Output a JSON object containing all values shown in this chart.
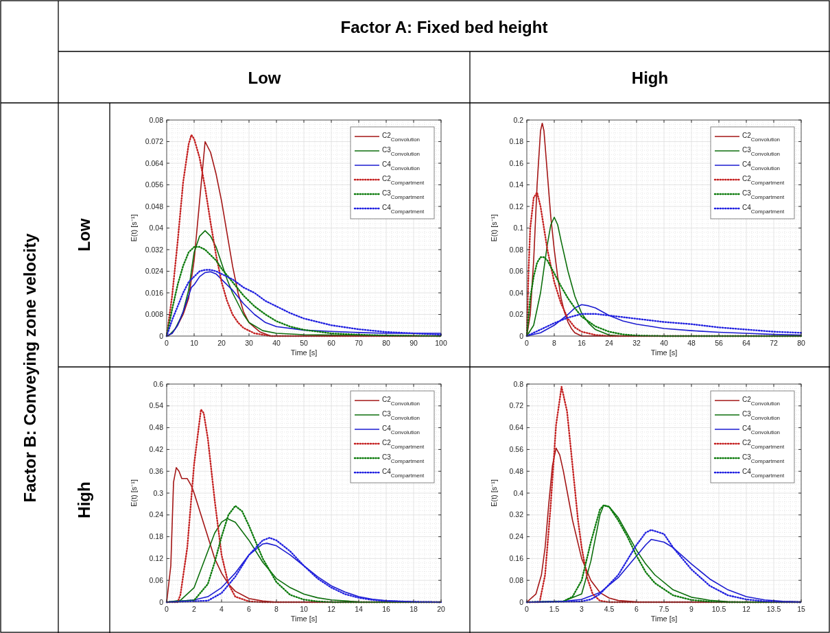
{
  "chart_data": [
    {
      "type": "line",
      "title": "Low",
      "subtitle": "Low",
      "annotations": [
        "Factor A: Fixed bed height",
        "Factor B: Conveying zone velocity"
      ],
      "xlabel": "Time [s]",
      "ylabel": "E(t) [s⁻¹]",
      "xlim": [
        0,
        100
      ],
      "xticks": [
        0,
        10,
        20,
        30,
        40,
        50,
        60,
        70,
        80,
        90,
        100
      ],
      "ylim": [
        0,
        0.08
      ],
      "yticks": [
        0,
        0.008,
        0.016,
        0.024,
        0.032,
        0.04,
        0.048,
        0.056,
        0.064,
        0.072,
        0.08
      ],
      "grid": true,
      "legend": "top right",
      "series": [
        {
          "name": "C2$_{Convolution}$",
          "color": "#a31515",
          "line_style": "solid",
          "x": [
            0,
            2,
            4,
            6,
            8,
            10,
            12,
            14,
            16,
            18,
            20,
            22,
            24,
            26,
            28,
            30,
            34,
            38,
            50,
            100
          ],
          "values": [
            0,
            0.001,
            0.004,
            0.008,
            0.014,
            0.028,
            0.05,
            0.072,
            0.068,
            0.06,
            0.05,
            0.038,
            0.026,
            0.016,
            0.009,
            0.005,
            0.0015,
            0,
            0,
            0
          ]
        },
        {
          "name": "C3$_{Convolution}$",
          "color": "#0b6e0b",
          "line_style": "solid",
          "x": [
            1,
            3,
            5,
            6,
            8,
            10,
            12,
            14,
            16,
            18,
            20,
            22,
            24,
            26,
            28,
            30,
            35,
            40,
            50,
            100
          ],
          "values": [
            0.0004,
            0.0025,
            0.0065,
            0.009,
            0.017,
            0.031,
            0.037,
            0.039,
            0.037,
            0.033,
            0.027,
            0.021,
            0.016,
            0.012,
            0.008,
            0.005,
            0.002,
            0.001,
            0.0005,
            0
          ]
        },
        {
          "name": "C4$_{Convolution}$",
          "color": "#1a1ad0",
          "line_style": "solid",
          "x": [
            0,
            2,
            4,
            6,
            8,
            9,
            10,
            12,
            14,
            16,
            18,
            20,
            24,
            28,
            32,
            36,
            40,
            50,
            60,
            70,
            80,
            90,
            100
          ],
          "values": [
            0,
            0.001,
            0.004,
            0.009,
            0.015,
            0.018,
            0.019,
            0.022,
            0.0235,
            0.0238,
            0.023,
            0.021,
            0.017,
            0.012,
            0.008,
            0.005,
            0.0035,
            0.0022,
            0.0017,
            0.0013,
            0.001,
            0.001,
            0.001
          ]
        },
        {
          "name": "C2$_{Compartment}$",
          "color": "#c42020",
          "line_style": "dotted",
          "x": [
            0,
            2,
            4,
            6,
            8,
            9,
            10,
            12,
            14,
            16,
            18,
            20,
            22,
            24,
            26,
            28,
            32,
            38,
            100
          ],
          "values": [
            0,
            0.015,
            0.035,
            0.057,
            0.071,
            0.0745,
            0.073,
            0.066,
            0.055,
            0.042,
            0.03,
            0.02,
            0.013,
            0.008,
            0.005,
            0.003,
            0.001,
            0,
            0
          ]
        },
        {
          "name": "C3$_{Compartment}$",
          "color": "#0b7a0b",
          "line_style": "dotted",
          "x": [
            0,
            2,
            4,
            6,
            8,
            10,
            12,
            14,
            16,
            18,
            20,
            24,
            28,
            32,
            36,
            40,
            45,
            50,
            60,
            70,
            80,
            100
          ],
          "values": [
            0,
            0.01,
            0.019,
            0.026,
            0.031,
            0.033,
            0.033,
            0.032,
            0.03,
            0.028,
            0.025,
            0.02,
            0.015,
            0.011,
            0.008,
            0.0055,
            0.0035,
            0.0023,
            0.001,
            0.0005,
            0.0002,
            0
          ]
        },
        {
          "name": "C4$_{Compartment}$",
          "color": "#2020e0",
          "line_style": "dotted",
          "x": [
            0,
            2,
            4,
            6,
            8,
            10,
            12,
            14,
            16,
            18,
            20,
            24,
            28,
            32,
            36,
            40,
            45,
            50,
            60,
            70,
            80,
            90,
            100
          ],
          "values": [
            0,
            0.006,
            0.011,
            0.016,
            0.02,
            0.022,
            0.024,
            0.0245,
            0.0245,
            0.024,
            0.023,
            0.021,
            0.018,
            0.016,
            0.013,
            0.011,
            0.0085,
            0.0065,
            0.004,
            0.0025,
            0.0015,
            0.001,
            0.0005
          ]
        }
      ]
    },
    {
      "type": "line",
      "title": "High",
      "xlabel": "Time [s]",
      "ylabel": "E(t) [s⁻¹]",
      "xlim": [
        0,
        80
      ],
      "xticks": [
        0,
        8,
        16,
        24,
        32,
        40,
        48,
        56,
        64,
        72,
        80
      ],
      "ylim": [
        0,
        0.2
      ],
      "yticks": [
        0,
        0.02,
        0.04,
        0.06,
        0.08,
        0.1,
        0.12,
        0.14,
        0.16,
        0.18,
        0.2
      ],
      "grid": true,
      "legend": "top right",
      "series": [
        {
          "name": "C2$_{Convolution}$",
          "color": "#a31515",
          "line_style": "solid",
          "x": [
            0,
            1,
            2,
            3,
            4,
            4.5,
            5,
            6,
            7,
            8,
            9,
            10,
            11,
            12,
            13,
            14,
            16,
            80
          ],
          "values": [
            0,
            0.02,
            0.07,
            0.14,
            0.19,
            0.197,
            0.19,
            0.15,
            0.11,
            0.08,
            0.055,
            0.035,
            0.022,
            0.013,
            0.007,
            0.003,
            0,
            0
          ]
        },
        {
          "name": "C3$_{Convolution}$",
          "color": "#0b6e0b",
          "line_style": "solid",
          "x": [
            0,
            2,
            4,
            6,
            7,
            8,
            9,
            10,
            12,
            14,
            16,
            18,
            20,
            24,
            28,
            80
          ],
          "values": [
            0,
            0.01,
            0.04,
            0.085,
            0.103,
            0.11,
            0.103,
            0.088,
            0.06,
            0.037,
            0.021,
            0.012,
            0.006,
            0.001,
            0,
            0
          ]
        },
        {
          "name": "C4$_{Convolution}$",
          "color": "#1a1ad0",
          "line_style": "solid",
          "x": [
            0,
            4,
            8,
            12,
            14,
            16,
            18,
            20,
            24,
            28,
            32,
            36,
            40,
            48,
            56,
            64,
            72,
            80
          ],
          "values": [
            0,
            0.003,
            0.01,
            0.02,
            0.026,
            0.029,
            0.028,
            0.026,
            0.019,
            0.014,
            0.011,
            0.009,
            0.007,
            0.005,
            0.0035,
            0.0025,
            0.0015,
            0.001
          ]
        },
        {
          "name": "C2$_{Compartment}$",
          "color": "#c42020",
          "line_style": "dotted",
          "x": [
            0,
            0.5,
            1,
            2,
            3,
            4,
            6,
            8,
            10,
            12,
            14,
            16,
            20,
            24,
            80
          ],
          "values": [
            0,
            0.06,
            0.1,
            0.128,
            0.133,
            0.12,
            0.08,
            0.05,
            0.03,
            0.016,
            0.008,
            0.004,
            0.001,
            0,
            0
          ]
        },
        {
          "name": "C3$_{Compartment}$",
          "color": "#0b7a0b",
          "line_style": "dotted",
          "x": [
            0,
            1,
            2,
            3,
            4,
            5,
            6,
            8,
            10,
            12,
            14,
            16,
            20,
            24,
            28,
            32,
            40,
            80
          ],
          "values": [
            0,
            0.035,
            0.055,
            0.068,
            0.073,
            0.073,
            0.07,
            0.058,
            0.046,
            0.035,
            0.026,
            0.018,
            0.009,
            0.004,
            0.0015,
            0.0005,
            0,
            0
          ]
        },
        {
          "name": "C4$_{Compartment}$",
          "color": "#2020e0",
          "line_style": "dotted",
          "x": [
            0,
            2,
            4,
            8,
            12,
            16,
            20,
            24,
            32,
            40,
            48,
            56,
            64,
            72,
            80
          ],
          "values": [
            0,
            0.003,
            0.006,
            0.012,
            0.017,
            0.0205,
            0.0205,
            0.019,
            0.016,
            0.013,
            0.011,
            0.008,
            0.006,
            0.004,
            0.003
          ]
        }
      ]
    },
    {
      "type": "line",
      "subtitle": "High",
      "xlabel": "Time [s]",
      "ylabel": "E(t) [s⁻¹]",
      "xlim": [
        0,
        20
      ],
      "xticks": [
        0,
        2,
        4,
        6,
        8,
        10,
        12,
        14,
        16,
        18,
        20
      ],
      "ylim": [
        0,
        0.6
      ],
      "yticks": [
        0,
        0.06,
        0.12,
        0.18,
        0.24,
        0.3,
        0.36,
        0.42,
        0.48,
        0.54,
        0.6
      ],
      "grid": true,
      "legend": "top right",
      "series": [
        {
          "name": "C2$_{Convolution}$",
          "color": "#a31515",
          "line_style": "solid",
          "x": [
            0,
            0.3,
            0.5,
            0.7,
            0.9,
            1.1,
            1.5,
            1.8,
            2,
            2.5,
            3,
            3.5,
            4,
            4.5,
            5,
            6,
            7,
            8,
            20
          ],
          "values": [
            0,
            0.1,
            0.33,
            0.37,
            0.36,
            0.34,
            0.34,
            0.32,
            0.3,
            0.24,
            0.18,
            0.12,
            0.08,
            0.05,
            0.03,
            0.01,
            0.003,
            0,
            0
          ]
        },
        {
          "name": "C3$_{Convolution}$",
          "color": "#0b6e0b",
          "line_style": "solid",
          "x": [
            0,
            1,
            2,
            3,
            3.5,
            4,
            4.4,
            5,
            6,
            7,
            8,
            9,
            10,
            11,
            12,
            14,
            16,
            20
          ],
          "values": [
            0,
            0.005,
            0.04,
            0.14,
            0.19,
            0.22,
            0.23,
            0.22,
            0.17,
            0.11,
            0.065,
            0.04,
            0.022,
            0.012,
            0.006,
            0.001,
            0,
            0
          ]
        },
        {
          "name": "C4$_{Convolution}$",
          "color": "#1a1ad0",
          "line_style": "solid",
          "x": [
            0,
            2,
            3,
            4,
            5,
            6,
            7,
            7.3,
            8,
            9,
            10,
            11,
            12,
            13,
            14,
            15,
            16,
            18,
            20
          ],
          "values": [
            0,
            0.006,
            0.015,
            0.04,
            0.08,
            0.13,
            0.16,
            0.162,
            0.155,
            0.13,
            0.1,
            0.07,
            0.045,
            0.028,
            0.015,
            0.008,
            0.004,
            0.001,
            0
          ]
        },
        {
          "name": "C2$_{Compartment}$",
          "color": "#c42020",
          "line_style": "dotted",
          "x": [
            0,
            0.8,
            1,
            1.5,
            2,
            2.5,
            2.7,
            3,
            3.5,
            4,
            4.5,
            5,
            6,
            7,
            20
          ],
          "values": [
            0,
            0,
            0.02,
            0.15,
            0.38,
            0.53,
            0.52,
            0.45,
            0.28,
            0.13,
            0.05,
            0.015,
            0.002,
            0,
            0
          ]
        },
        {
          "name": "C3$_{Compartment}$",
          "color": "#0b7a0b",
          "line_style": "dotted",
          "x": [
            0,
            2,
            3,
            3.5,
            4,
            4.5,
            5,
            5.5,
            6,
            7,
            8,
            9,
            10,
            11,
            12,
            20
          ],
          "values": [
            0,
            0.005,
            0.05,
            0.11,
            0.18,
            0.24,
            0.265,
            0.25,
            0.21,
            0.12,
            0.055,
            0.02,
            0.007,
            0.002,
            0,
            0
          ]
        },
        {
          "name": "C4$_{Compartment}$",
          "color": "#2020e0",
          "line_style": "dotted",
          "x": [
            0,
            3,
            4,
            5,
            6,
            7,
            7.5,
            8,
            9,
            10,
            11,
            12,
            13,
            14,
            15,
            16,
            18,
            20
          ],
          "values": [
            0,
            0.004,
            0.025,
            0.07,
            0.13,
            0.17,
            0.177,
            0.17,
            0.14,
            0.1,
            0.065,
            0.04,
            0.022,
            0.012,
            0.006,
            0.003,
            0.001,
            0
          ]
        }
      ]
    },
    {
      "type": "line",
      "xlabel": "Time [s]",
      "ylabel": "E(t) [s⁻¹]",
      "xlim": [
        0,
        15
      ],
      "xticks": [
        0,
        1.5,
        3,
        4.5,
        6,
        7.5,
        9,
        10.5,
        12,
        13.5,
        15
      ],
      "ylim": [
        0,
        0.8
      ],
      "yticks": [
        0,
        0.08,
        0.16,
        0.24,
        0.32,
        0.4,
        0.48,
        0.56,
        0.64,
        0.72,
        0.8
      ],
      "grid": true,
      "legend": "top right",
      "series": [
        {
          "name": "C2$_{Convolution}$",
          "color": "#a31515",
          "line_style": "solid",
          "x": [
            0,
            0.5,
            0.8,
            1,
            1.2,
            1.4,
            1.6,
            1.8,
            2,
            2.5,
            3,
            3.5,
            4,
            4.5,
            5,
            6,
            7,
            15
          ],
          "values": [
            0,
            0.03,
            0.1,
            0.2,
            0.36,
            0.5,
            0.565,
            0.54,
            0.48,
            0.3,
            0.16,
            0.08,
            0.035,
            0.015,
            0.006,
            0.001,
            0,
            0
          ]
        },
        {
          "name": "C3$_{Convolution}$",
          "color": "#0b6e0b",
          "line_style": "solid",
          "x": [
            0,
            2,
            3,
            3.5,
            4,
            4.2,
            4.5,
            5,
            5.5,
            6,
            6.5,
            7,
            8,
            9,
            10,
            11,
            12,
            15
          ],
          "values": [
            0,
            0.003,
            0.03,
            0.15,
            0.32,
            0.355,
            0.35,
            0.31,
            0.25,
            0.19,
            0.14,
            0.1,
            0.045,
            0.018,
            0.007,
            0.002,
            0,
            0
          ]
        },
        {
          "name": "C4$_{Convolution}$",
          "color": "#1a1ad0",
          "line_style": "solid",
          "x": [
            0,
            2,
            3,
            4,
            5,
            6,
            6.5,
            6.8,
            7.5,
            8,
            9,
            10,
            11,
            12,
            13,
            14,
            15
          ],
          "values": [
            0,
            0.003,
            0.01,
            0.035,
            0.09,
            0.17,
            0.21,
            0.23,
            0.22,
            0.2,
            0.14,
            0.085,
            0.045,
            0.02,
            0.008,
            0.003,
            0.001
          ]
        },
        {
          "name": "C2$_{Compartment}$",
          "color": "#c42020",
          "line_style": "dotted",
          "x": [
            0,
            0.7,
            1,
            1.3,
            1.6,
            1.9,
            2.2,
            2.5,
            2.8,
            3,
            3.3,
            3.6,
            4,
            4.5,
            15
          ],
          "values": [
            0,
            0,
            0.1,
            0.35,
            0.65,
            0.79,
            0.7,
            0.5,
            0.3,
            0.2,
            0.09,
            0.03,
            0.005,
            0,
            0
          ]
        },
        {
          "name": "C3$_{Compartment}$",
          "color": "#0b7a0b",
          "line_style": "dotted",
          "x": [
            0,
            2,
            2.5,
            3,
            3.5,
            4,
            4.2,
            4.5,
            5,
            5.5,
            6,
            6.5,
            7,
            8,
            9,
            10,
            11,
            15
          ],
          "values": [
            0,
            0.003,
            0.02,
            0.08,
            0.22,
            0.34,
            0.355,
            0.35,
            0.3,
            0.24,
            0.17,
            0.11,
            0.07,
            0.025,
            0.008,
            0.002,
            0,
            0
          ]
        },
        {
          "name": "C4$_{Compartment}$",
          "color": "#2020e0",
          "line_style": "dotted",
          "x": [
            0,
            3,
            3.5,
            4,
            5,
            6,
            6.5,
            6.8,
            7.5,
            8,
            9,
            10,
            11,
            12,
            13,
            14,
            15
          ],
          "values": [
            0,
            0.003,
            0.01,
            0.03,
            0.1,
            0.21,
            0.255,
            0.265,
            0.25,
            0.2,
            0.12,
            0.06,
            0.025,
            0.01,
            0.003,
            0.001,
            0
          ]
        }
      ]
    }
  ]
}
